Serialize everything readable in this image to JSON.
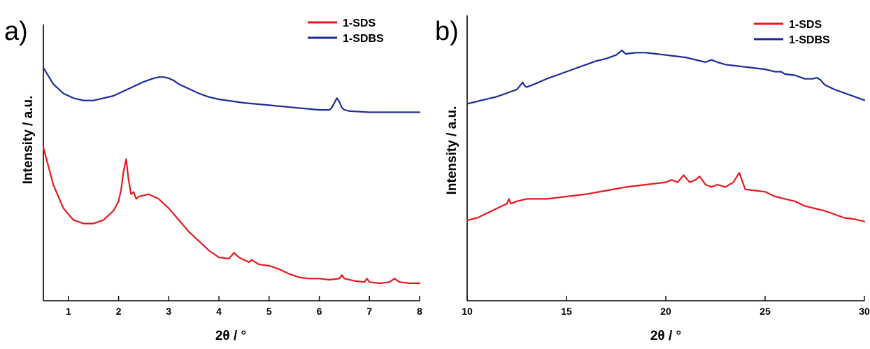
{
  "chart_data": [
    {
      "type": "line",
      "panel_label": "a)",
      "xlabel": "2θ / °",
      "ylabel": "Intensity / a.u.",
      "xlim": [
        0.5,
        8
      ],
      "xticks": [
        1,
        2,
        3,
        4,
        5,
        6,
        7,
        8
      ],
      "y_ticks_shown": false,
      "legend_placement": "top-right",
      "series": [
        {
          "name": "1-SDS",
          "color": "#e8191e",
          "x": [
            0.5,
            0.7,
            0.9,
            1.1,
            1.3,
            1.5,
            1.7,
            1.9,
            2.0,
            2.05,
            2.1,
            2.15,
            2.2,
            2.25,
            2.3,
            2.35,
            2.4,
            2.6,
            2.8,
            3.0,
            3.2,
            3.4,
            3.6,
            3.8,
            4.0,
            4.2,
            4.3,
            4.4,
            4.5,
            4.6,
            4.65,
            4.8,
            5.0,
            5.2,
            5.4,
            5.6,
            5.8,
            6.0,
            6.2,
            6.4,
            6.45,
            6.5,
            6.7,
            6.9,
            6.95,
            7.0,
            7.2,
            7.4,
            7.5,
            7.6,
            7.8,
            8.0
          ],
          "y": [
            0.58,
            0.42,
            0.32,
            0.27,
            0.255,
            0.255,
            0.27,
            0.31,
            0.35,
            0.4,
            0.48,
            0.53,
            0.44,
            0.38,
            0.39,
            0.36,
            0.37,
            0.38,
            0.36,
            0.32,
            0.27,
            0.22,
            0.18,
            0.14,
            0.11,
            0.105,
            0.13,
            0.11,
            0.1,
            0.09,
            0.1,
            0.08,
            0.075,
            0.06,
            0.04,
            0.025,
            0.02,
            0.02,
            0.015,
            0.02,
            0.035,
            0.02,
            0.01,
            0.005,
            0.02,
            0.005,
            0.0,
            0.005,
            0.02,
            0.005,
            0.0,
            0.0
          ]
        },
        {
          "name": "1-SDBS",
          "color": "#1c2b9a",
          "x": [
            0.5,
            0.7,
            0.9,
            1.1,
            1.3,
            1.5,
            1.7,
            1.9,
            2.1,
            2.3,
            2.5,
            2.7,
            2.8,
            2.9,
            3.0,
            3.1,
            3.2,
            3.4,
            3.6,
            3.8,
            4.0,
            4.5,
            5.0,
            5.5,
            6.0,
            6.2,
            6.25,
            6.3,
            6.35,
            6.4,
            6.45,
            6.5,
            6.6,
            7.0,
            7.5,
            8.0
          ],
          "y": [
            0.92,
            0.85,
            0.81,
            0.79,
            0.78,
            0.78,
            0.79,
            0.8,
            0.82,
            0.84,
            0.86,
            0.875,
            0.88,
            0.88,
            0.875,
            0.865,
            0.85,
            0.83,
            0.81,
            0.795,
            0.785,
            0.77,
            0.76,
            0.75,
            0.74,
            0.74,
            0.75,
            0.77,
            0.79,
            0.775,
            0.75,
            0.74,
            0.735,
            0.73,
            0.73,
            0.73
          ]
        }
      ]
    },
    {
      "type": "line",
      "panel_label": "b)",
      "xlabel": "2θ / °",
      "ylabel": "Intensity / a.u.",
      "xlim": [
        10,
        30
      ],
      "xticks": [
        10,
        15,
        20,
        25,
        30
      ],
      "y_ticks_shown": false,
      "legend_placement": "top-right",
      "series": [
        {
          "name": "1-SDS",
          "color": "#e8191e",
          "x": [
            10,
            10.5,
            11,
            11.5,
            12,
            12.1,
            12.2,
            12.5,
            13,
            14,
            15,
            16,
            17,
            18,
            19,
            20,
            20.3,
            20.6,
            20.9,
            21.2,
            21.5,
            21.7,
            22,
            22.3,
            22.6,
            23,
            23.4,
            23.7,
            24,
            24.5,
            25,
            25.5,
            26,
            26.5,
            27,
            27.5,
            28,
            28.5,
            29,
            29.5,
            30
          ],
          "y": [
            0.25,
            0.26,
            0.28,
            0.3,
            0.32,
            0.34,
            0.32,
            0.33,
            0.34,
            0.34,
            0.35,
            0.36,
            0.375,
            0.39,
            0.4,
            0.41,
            0.42,
            0.41,
            0.44,
            0.41,
            0.42,
            0.435,
            0.4,
            0.39,
            0.4,
            0.39,
            0.41,
            0.45,
            0.38,
            0.375,
            0.37,
            0.35,
            0.34,
            0.33,
            0.31,
            0.3,
            0.29,
            0.275,
            0.26,
            0.255,
            0.245
          ]
        },
        {
          "name": "1-SDBS",
          "color": "#1c2b9a",
          "x": [
            10,
            10.5,
            11,
            11.5,
            12,
            12.5,
            12.7,
            12.8,
            12.9,
            13,
            13.3,
            13.6,
            14,
            14.5,
            15,
            15.5,
            16,
            16.5,
            17,
            17.5,
            17.8,
            17.9,
            18,
            18.5,
            19,
            19.5,
            20,
            20.5,
            21,
            21.5,
            22,
            22.3,
            22.6,
            23,
            23.5,
            24,
            24.5,
            25,
            25.5,
            25.8,
            26,
            26.5,
            27,
            27.4,
            27.6,
            27.8,
            28,
            28.5,
            29,
            29.5,
            30
          ],
          "y": [
            0.74,
            0.75,
            0.76,
            0.77,
            0.785,
            0.8,
            0.82,
            0.83,
            0.815,
            0.81,
            0.82,
            0.83,
            0.845,
            0.86,
            0.875,
            0.89,
            0.905,
            0.92,
            0.93,
            0.945,
            0.965,
            0.955,
            0.95,
            0.955,
            0.955,
            0.95,
            0.945,
            0.94,
            0.935,
            0.925,
            0.915,
            0.925,
            0.915,
            0.905,
            0.9,
            0.895,
            0.89,
            0.885,
            0.875,
            0.875,
            0.865,
            0.86,
            0.845,
            0.845,
            0.85,
            0.84,
            0.82,
            0.8,
            0.785,
            0.77,
            0.755
          ]
        }
      ]
    }
  ]
}
